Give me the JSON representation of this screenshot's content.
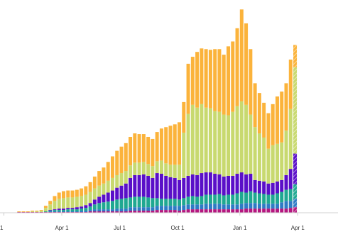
{
  "chart_data": {
    "type": "bar",
    "stacked": true,
    "title": "",
    "xlabel": "",
    "ylabel": "",
    "x_tick_labels": [
      {
        "label": "1",
        "week": 0
      },
      {
        "label": "Apr 1",
        "week": 13
      },
      {
        "label": "Jul 1",
        "week": 26
      },
      {
        "label": "Oct 1",
        "week": 39
      },
      {
        "label": "Jan 1",
        "week": 53
      },
      {
        "label": "Apr 1",
        "week": 66
      }
    ],
    "ylim": [
      0,
      275
    ],
    "grid": false,
    "legend": "none",
    "colors": [
      "#b5177f",
      "#2e7bc4",
      "#1fa891",
      "#5a0fc8",
      "#c8d96f",
      "#fbb33b"
    ],
    "partial_last_week": true,
    "weeks": [
      [
        0,
        0,
        0,
        0,
        0,
        0
      ],
      [
        0,
        0,
        0,
        0,
        0,
        0
      ],
      [
        0,
        0,
        0,
        0,
        0,
        0
      ],
      [
        1,
        0,
        0,
        0,
        0,
        1
      ],
      [
        1,
        0,
        0,
        0,
        0,
        1
      ],
      [
        1,
        0,
        0,
        0,
        0,
        1
      ],
      [
        1,
        0,
        0,
        0,
        1,
        1
      ],
      [
        1,
        0,
        0,
        0,
        1,
        1
      ],
      [
        1,
        0,
        0,
        0,
        2,
        1
      ],
      [
        1,
        0,
        1,
        0,
        5,
        3
      ],
      [
        1,
        1,
        1,
        1,
        8,
        5
      ],
      [
        1,
        1,
        2,
        1,
        12,
        7
      ],
      [
        1,
        1,
        2,
        2,
        14,
        9
      ],
      [
        1,
        1,
        2,
        2,
        15,
        10
      ],
      [
        1,
        1,
        3,
        2,
        15,
        10
      ],
      [
        1,
        1,
        3,
        2,
        15,
        10
      ],
      [
        1,
        1,
        3,
        3,
        15,
        10
      ],
      [
        1,
        2,
        3,
        3,
        15,
        11
      ],
      [
        1,
        2,
        4,
        4,
        15,
        12
      ],
      [
        2,
        2,
        5,
        5,
        16,
        14
      ],
      [
        2,
        3,
        7,
        7,
        16,
        17
      ],
      [
        2,
        3,
        9,
        9,
        16,
        21
      ],
      [
        2,
        3,
        10,
        11,
        16,
        23
      ],
      [
        2,
        3,
        11,
        13,
        17,
        27
      ],
      [
        2,
        3,
        12,
        15,
        18,
        31
      ],
      [
        2,
        4,
        13,
        17,
        18,
        35
      ],
      [
        2,
        4,
        14,
        19,
        18,
        38
      ],
      [
        2,
        4,
        15,
        21,
        18,
        40
      ],
      [
        3,
        5,
        14,
        28,
        18,
        41
      ],
      [
        3,
        5,
        15,
        31,
        18,
        42
      ],
      [
        3,
        5,
        15,
        31,
        18,
        41
      ],
      [
        3,
        5,
        15,
        32,
        18,
        40
      ],
      [
        3,
        5,
        14,
        31,
        17,
        39
      ],
      [
        3,
        5,
        13,
        29,
        17,
        39
      ],
      [
        4,
        6,
        11,
        36,
        17,
        42
      ],
      [
        4,
        6,
        10,
        36,
        19,
        46
      ],
      [
        4,
        6,
        10,
        33,
        18,
        52
      ],
      [
        4,
        6,
        10,
        31,
        18,
        56
      ],
      [
        4,
        6,
        10,
        30,
        19,
        58
      ],
      [
        3,
        7,
        9,
        28,
        22,
        61
      ],
      [
        4,
        7,
        10,
        29,
        65,
        44
      ],
      [
        5,
        7,
        11,
        30,
        89,
        72
      ],
      [
        5,
        7,
        12,
        31,
        100,
        69
      ],
      [
        5,
        7,
        11,
        31,
        97,
        80
      ],
      [
        5,
        7,
        12,
        33,
        99,
        80
      ],
      [
        5,
        8,
        13,
        32,
        93,
        84
      ],
      [
        5,
        8,
        13,
        32,
        92,
        84
      ],
      [
        5,
        8,
        13,
        30,
        90,
        89
      ],
      [
        5,
        8,
        14,
        28,
        90,
        90
      ],
      [
        5,
        7,
        13,
        27,
        89,
        86
      ],
      [
        5,
        7,
        14,
        27,
        87,
        99
      ],
      [
        5,
        7,
        14,
        27,
        92,
        101
      ],
      [
        5,
        7,
        16,
        28,
        97,
        112
      ],
      [
        5,
        8,
        17,
        28,
        102,
        132
      ],
      [
        6,
        8,
        15,
        26,
        100,
        117
      ],
      [
        6,
        8,
        17,
        25,
        85,
        94
      ],
      [
        6,
        8,
        15,
        18,
        76,
        63
      ],
      [
        6,
        7,
        15,
        18,
        68,
        58
      ],
      [
        6,
        7,
        14,
        18,
        63,
        50
      ],
      [
        6,
        7,
        13,
        16,
        50,
        51
      ],
      [
        6,
        7,
        13,
        17,
        54,
        59
      ],
      [
        6,
        7,
        15,
        17,
        54,
        68
      ],
      [
        6,
        9,
        15,
        17,
        54,
        73
      ],
      [
        6,
        11,
        16,
        21,
        64,
        68
      ],
      [
        7,
        10,
        17,
        29,
        86,
        71
      ],
      [
        8,
        12,
        21,
        44,
        124,
        32
      ]
    ]
  }
}
